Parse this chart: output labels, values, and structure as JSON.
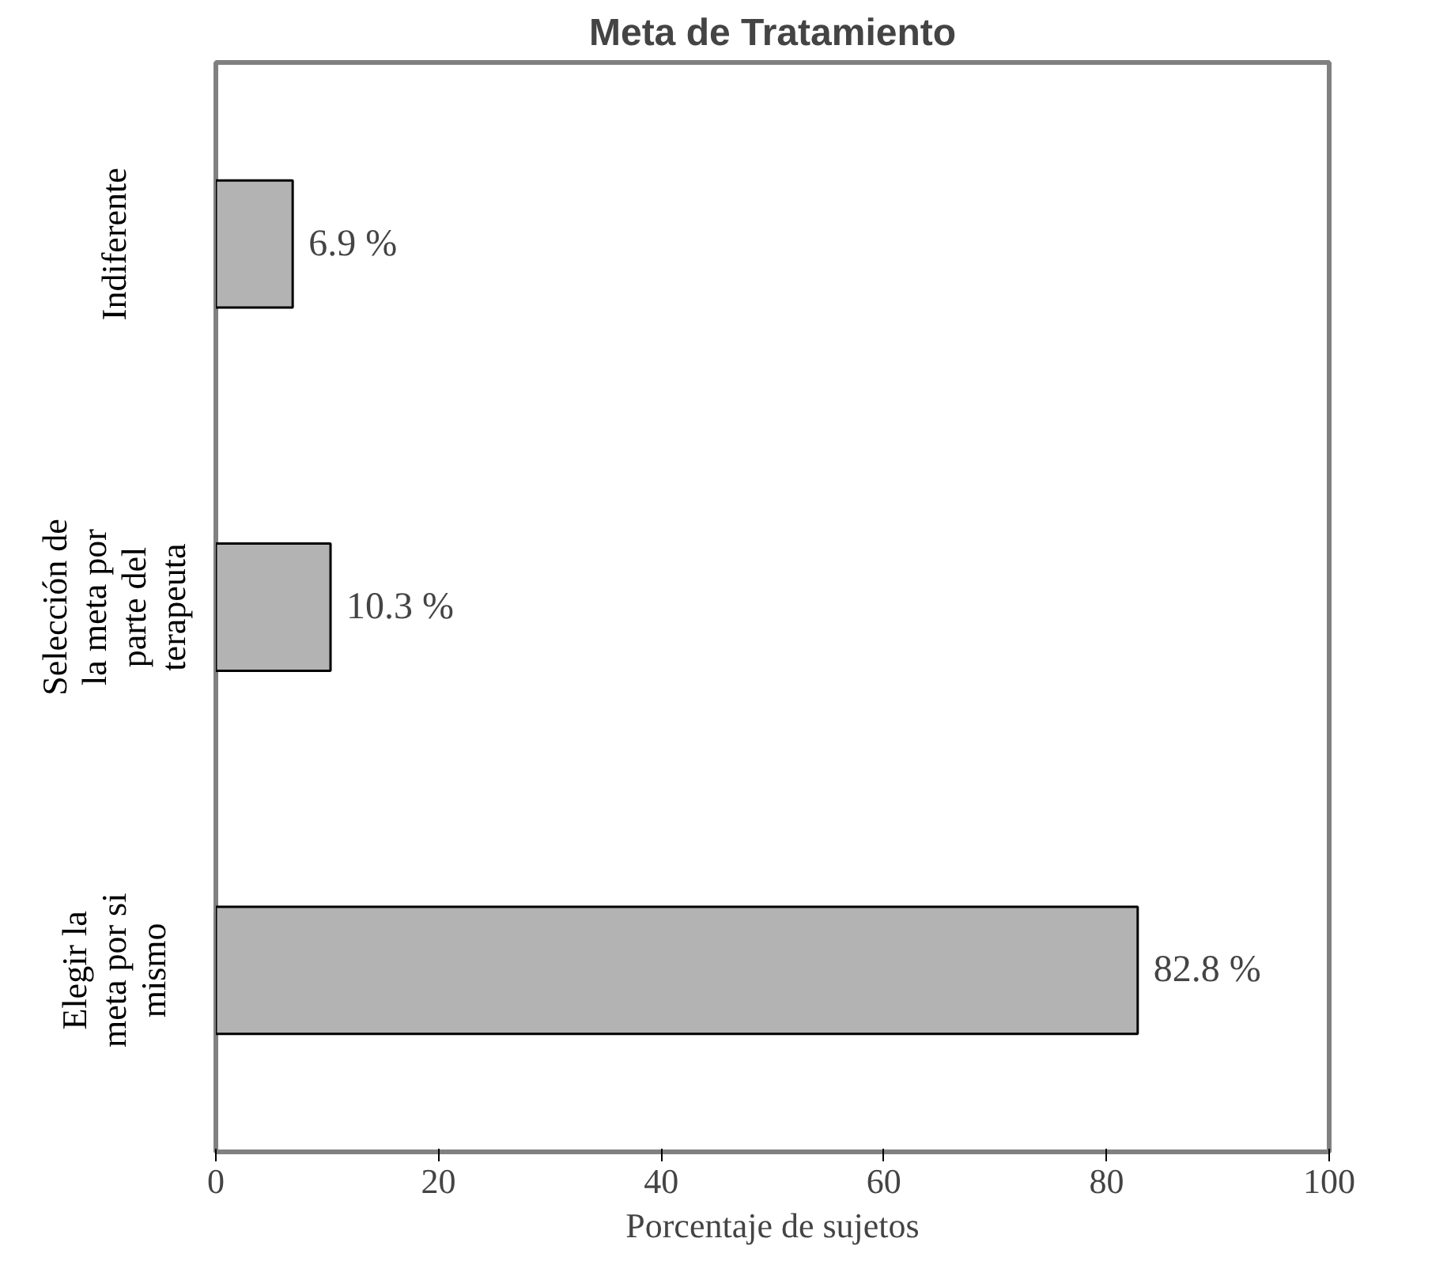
{
  "chart_data": {
    "type": "bar",
    "orientation": "horizontal",
    "title": "Meta de Tratamiento",
    "xlabel": "Porcentaje de sujetos",
    "categories": [
      "Indiferente",
      "Selección de la meta por parte del terapeuta",
      "Elegir la meta por si mismo"
    ],
    "values": [
      6.9,
      10.3,
      82.8
    ],
    "value_labels": [
      "6.9 %",
      "10.3 %",
      "82.8 %"
    ],
    "color": "#b3b3b3",
    "xlim": [
      0,
      100
    ],
    "xticks": [
      0,
      20,
      40,
      60,
      80,
      100
    ],
    "grid": false
  }
}
